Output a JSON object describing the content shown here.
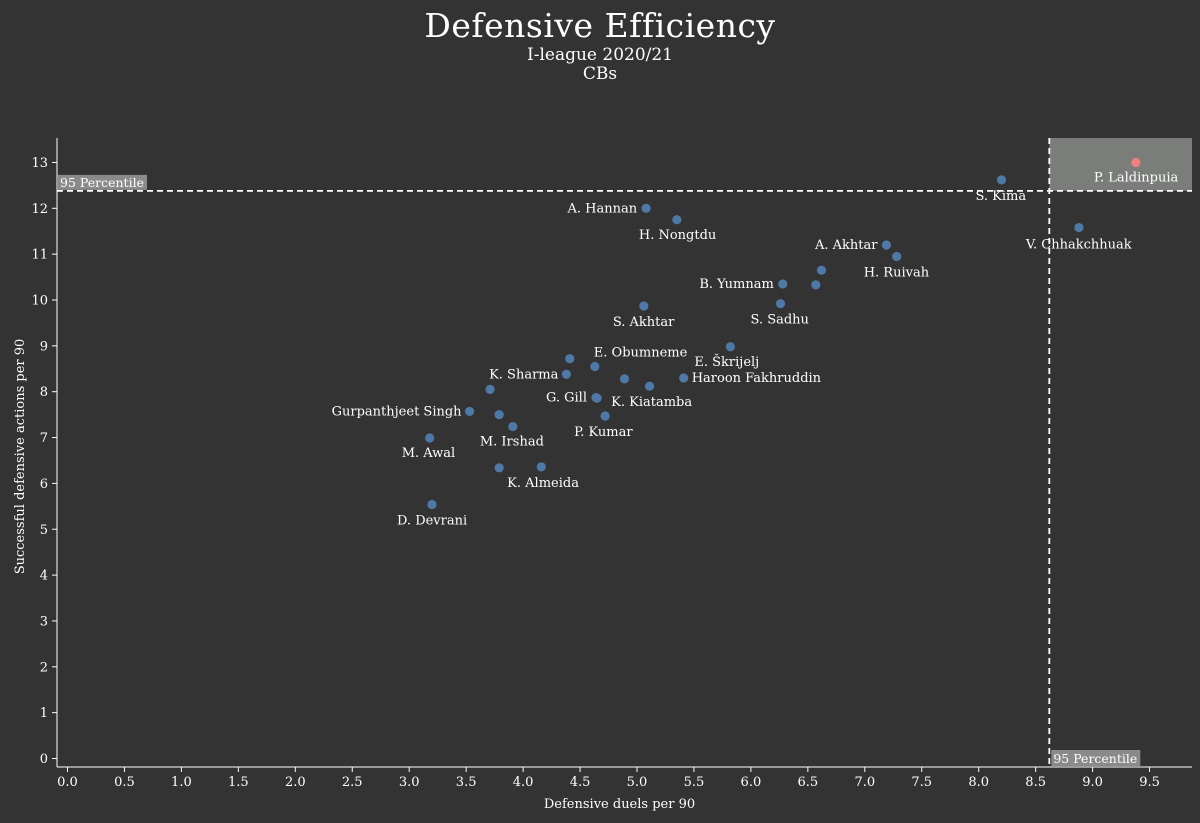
{
  "chart_data": {
    "type": "scatter",
    "title": "Defensive Efficiency",
    "subtitle_1": "I-league 2020/21",
    "subtitle_2": "CBs",
    "xlabel": "Defensive duels per 90",
    "ylabel": "Successful defensive actions per 90",
    "xlim": [
      -0.1,
      9.95
    ],
    "ylim": [
      -0.2,
      13.8
    ],
    "xticks": [
      "0.0",
      "0.5",
      "1.0",
      "1.5",
      "2.0",
      "2.5",
      "3.0",
      "3.5",
      "4.0",
      "4.5",
      "5.0",
      "5.5",
      "6.0",
      "6.5",
      "7.0",
      "7.5",
      "8.0",
      "8.5",
      "9.0",
      "9.5"
    ],
    "yticks": [
      "0",
      "1",
      "2",
      "3",
      "4",
      "5",
      "6",
      "7",
      "8",
      "9",
      "10",
      "11",
      "12",
      "13"
    ],
    "percentile_x": 8.62,
    "percentile_y": 12.38,
    "percentile_label": "95 Percentile",
    "colors": {
      "background": "#333333",
      "point": "#4e79a7",
      "highlight": "#f08080",
      "zone": "#7a7d7a"
    },
    "points": [
      {
        "label": "P. Laldinpuia",
        "x": 9.38,
        "y": 13.0,
        "highlight": true
      },
      {
        "label": "S. Kima",
        "x": 8.2,
        "y": 12.62
      },
      {
        "label": "V. Chhakchhuak",
        "x": 8.88,
        "y": 11.58
      },
      {
        "label": "A. Hannan",
        "x": 5.08,
        "y": 12.0
      },
      {
        "label": "H. Nongtdu",
        "x": 5.35,
        "y": 11.75
      },
      {
        "label": "A. Akhtar",
        "x": 7.19,
        "y": 11.2
      },
      {
        "label": "H. Ruivah",
        "x": 7.28,
        "y": 10.95
      },
      {
        "label": "",
        "x": 6.62,
        "y": 10.65
      },
      {
        "label": "B. Yumnam",
        "x": 6.28,
        "y": 10.35
      },
      {
        "label": "",
        "x": 6.57,
        "y": 10.33
      },
      {
        "label": "S. Sadhu",
        "x": 6.26,
        "y": 9.92
      },
      {
        "label": "S. Akhtar",
        "x": 5.06,
        "y": 9.87
      },
      {
        "label": "E. Škrijelj",
        "x": 5.82,
        "y": 8.98
      },
      {
        "label": "E. Obumneme",
        "x": 4.41,
        "y": 8.72
      },
      {
        "label": "",
        "x": 4.63,
        "y": 8.55
      },
      {
        "label": "K. Sharma",
        "x": 4.38,
        "y": 8.38
      },
      {
        "label": "Haroon Fakhruddin",
        "x": 5.41,
        "y": 8.3
      },
      {
        "label": "",
        "x": 4.89,
        "y": 8.28
      },
      {
        "label": "",
        "x": 5.11,
        "y": 8.12
      },
      {
        "label": "",
        "x": 3.71,
        "y": 8.05
      },
      {
        "label": "G. Gill",
        "x": 4.64,
        "y": 7.87
      },
      {
        "label": "K. Kiatamba",
        "x": 4.65,
        "y": 7.86
      },
      {
        "label": "Gurpanthjeet Singh",
        "x": 3.53,
        "y": 7.57
      },
      {
        "label": "",
        "x": 3.79,
        "y": 7.5
      },
      {
        "label": "P. Kumar",
        "x": 4.72,
        "y": 7.47
      },
      {
        "label": "M. Irshad",
        "x": 3.91,
        "y": 7.24
      },
      {
        "label": "M. Awal",
        "x": 3.18,
        "y": 6.99
      },
      {
        "label": "K. Almeida",
        "x": 3.79,
        "y": 6.34
      },
      {
        "label": "",
        "x": 4.16,
        "y": 6.36
      },
      {
        "label": "D. Devrani",
        "x": 3.2,
        "y": 5.54
      }
    ]
  }
}
